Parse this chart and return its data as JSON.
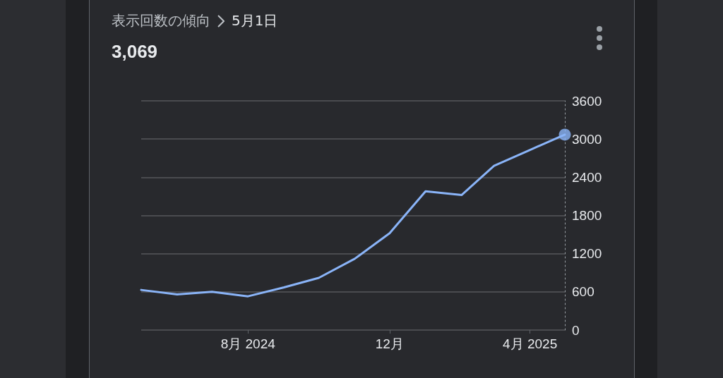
{
  "chart_data": {
    "type": "line",
    "title": "表示回数の傾向",
    "subtitle": "5月1日",
    "annotations": [
      "3,069"
    ],
    "x": [
      "2024-05-01",
      "2024-06-01",
      "2024-07-01",
      "2024-08-01",
      "2024-09-01",
      "2024-10-01",
      "2024-11-01",
      "2024-12-01",
      "2025-01-01",
      "2025-02-01",
      "2025-03-01",
      "2025-04-01",
      "2025-05-01"
    ],
    "series": [
      {
        "color": "#8ab4f8",
        "values": [
          630,
          560,
          600,
          530,
          670,
          820,
          1120,
          1520,
          2180,
          2120,
          2580,
          2830,
          3069
        ]
      },
      {
        "type": "scatter",
        "color": "#8ab4f8",
        "x": [
          "2025-05-01"
        ],
        "values": [
          3069
        ],
        "marker": "circle"
      }
    ],
    "xlim": [
      "2024-05-01",
      "2025-05-01"
    ],
    "xticks": [
      {
        "value": "2024-08-01",
        "label": "8月 2024"
      },
      {
        "value": "2024-12-01",
        "label": "12月"
      },
      {
        "value": "2025-04-01",
        "label": "4月 2025"
      }
    ],
    "ylim": [
      0,
      3600
    ],
    "yticks": [
      0,
      600,
      1200,
      1800,
      2400,
      3000,
      3600
    ],
    "grid": "y",
    "marker": "none",
    "line_style": "solid"
  }
}
